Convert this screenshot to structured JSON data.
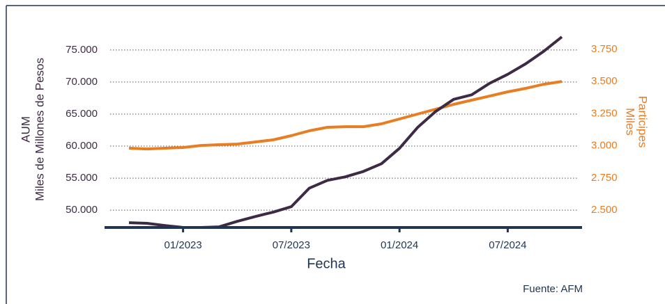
{
  "chart_data": {
    "type": "line",
    "x_label": "Fecha",
    "y_label": [
      "AUM",
      "Miles de Millones de Pesos"
    ],
    "y2_label": [
      "Participes",
      "Miles"
    ],
    "source": "Fuente: AFM",
    "categories": [
      null,
      null,
      null,
      "01/2023",
      null,
      null,
      null,
      null,
      null,
      "07/2023",
      null,
      null,
      null,
      null,
      null,
      "01/2024",
      null,
      null,
      null,
      null,
      null,
      "07/2024",
      null,
      null,
      null
    ],
    "series": [
      {
        "color": "#3d2b45",
        "axis": "y",
        "values": [
          48050,
          47950,
          47600,
          47300,
          47300,
          47400,
          48250,
          49000,
          49700,
          50550,
          53450,
          54650,
          55200,
          56050,
          57250,
          59650,
          62900,
          65400,
          67300,
          68000,
          69800,
          71200,
          72850,
          74800,
          77050
        ]
      },
      {
        "color": "#e87d22",
        "axis": "y2",
        "values": [
          2982,
          2976,
          2982,
          2987,
          3003,
          3009,
          3014,
          3030,
          3047,
          3079,
          3117,
          3144,
          3149,
          3149,
          3171,
          3209,
          3247,
          3285,
          3323,
          3355,
          3387,
          3420,
          3447,
          3479,
          3501
        ]
      }
    ],
    "ylim": [
      47300,
      79000
    ],
    "yticks": [
      {
        "value": 50000,
        "label": "50.000"
      },
      {
        "value": 55000,
        "label": "55.000"
      },
      {
        "value": 60000,
        "label": "60.000"
      },
      {
        "value": 65000,
        "label": "65.000"
      },
      {
        "value": 70000,
        "label": "70.000"
      },
      {
        "value": 75000,
        "label": "75.000"
      }
    ],
    "y2lim": [
      2365,
      3945
    ],
    "y2ticks": [
      {
        "value": 2500,
        "label": "2.500"
      },
      {
        "value": 2750,
        "label": "2.750"
      },
      {
        "value": 3000,
        "label": "3.000"
      },
      {
        "value": 3250,
        "label": "3.250"
      },
      {
        "value": 3500,
        "label": "3.500"
      },
      {
        "value": 3750,
        "label": "3.750"
      }
    ],
    "grid": true
  }
}
